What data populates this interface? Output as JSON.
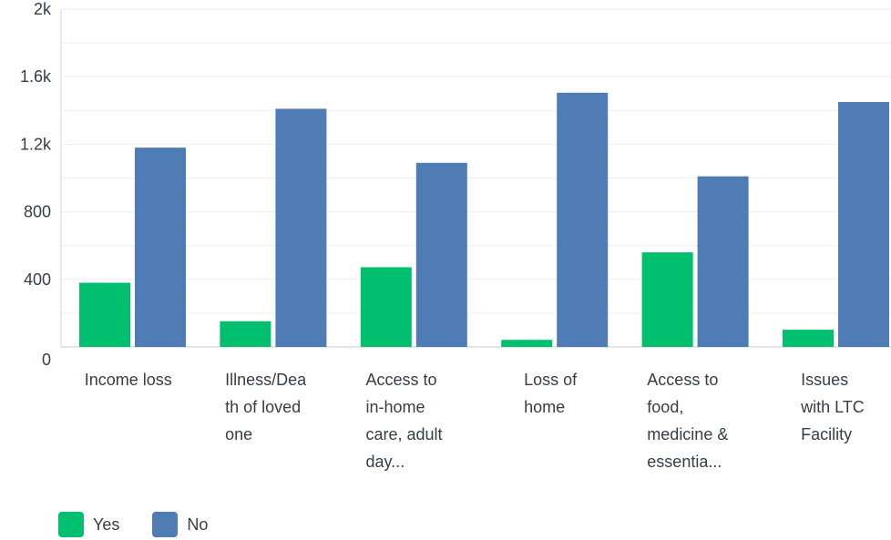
{
  "chart_data": {
    "type": "bar",
    "categories": [
      [
        "Income loss"
      ],
      [
        "Illness/Dea",
        "th of loved",
        "one"
      ],
      [
        "Access to",
        "in-home",
        "care, adult",
        "day..."
      ],
      [
        "Loss of",
        "home"
      ],
      [
        "Access to",
        "food,",
        "medicine &",
        "essentia..."
      ],
      [
        "Issues",
        "with LTC",
        "Facility"
      ]
    ],
    "series": [
      {
        "name": "Yes",
        "color": "#00bf6f",
        "values": [
          380,
          152,
          472,
          42,
          560,
          102
        ]
      },
      {
        "name": "No",
        "color": "#507cb6",
        "values": [
          1180,
          1410,
          1090,
          1505,
          1010,
          1450
        ]
      }
    ],
    "ylim": [
      0,
      2000
    ],
    "yticks": [
      0,
      400,
      800,
      1200,
      1600,
      2000
    ],
    "ytick_labels": [
      "0",
      "400",
      "800",
      "1.2k",
      "1.6k",
      "2k"
    ],
    "grid": true,
    "legend_position": "bottom-left"
  }
}
